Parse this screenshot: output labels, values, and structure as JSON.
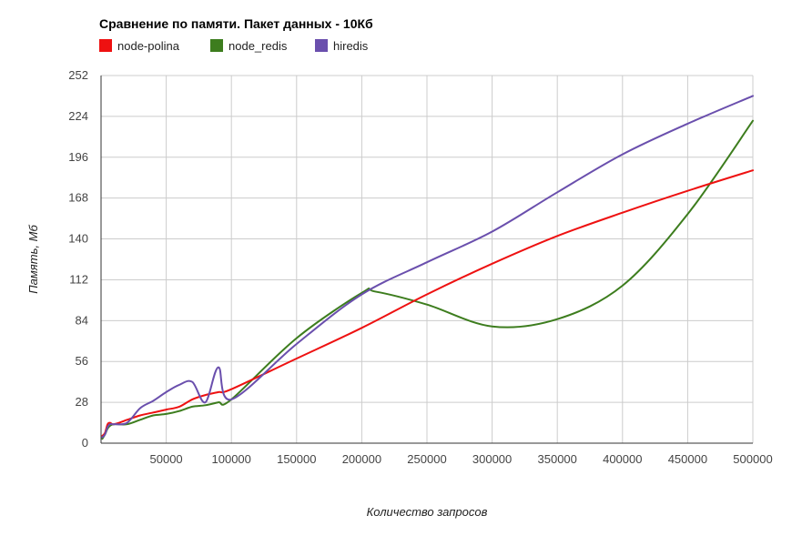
{
  "chart_data": {
    "type": "line",
    "title": "Сравнение по памяти. Пакет данных - 10Кб",
    "xlabel": "Количество запросов",
    "ylabel": "Память, Мб",
    "xlim": [
      0,
      500000
    ],
    "ylim": [
      0,
      252
    ],
    "xticks": [
      {
        "value": 50000,
        "label": "50000"
      },
      {
        "value": 100000,
        "label": "100000"
      },
      {
        "value": 150000,
        "label": "150000"
      },
      {
        "value": 200000,
        "label": "200000"
      },
      {
        "value": 250000,
        "label": "250000"
      },
      {
        "value": 300000,
        "label": "300000"
      },
      {
        "value": 350000,
        "label": "350000"
      },
      {
        "value": 400000,
        "label": "400000"
      },
      {
        "value": 450000,
        "label": "450000"
      },
      {
        "value": 500000,
        "label": "500000"
      }
    ],
    "yticks": [
      {
        "value": 0,
        "label": "0"
      },
      {
        "value": 28,
        "label": "28"
      },
      {
        "value": 56,
        "label": "56"
      },
      {
        "value": 84,
        "label": "84"
      },
      {
        "value": 112,
        "label": "112"
      },
      {
        "value": 140,
        "label": "140"
      },
      {
        "value": 168,
        "label": "168"
      },
      {
        "value": 196,
        "label": "196"
      },
      {
        "value": 224,
        "label": "224"
      },
      {
        "value": 252,
        "label": "252"
      }
    ],
    "legend_position": "top-left",
    "series": [
      {
        "name": "node-polina",
        "color": "#ee1111",
        "x": [
          1000,
          3000,
          5000,
          7000,
          10000,
          20000,
          30000,
          40000,
          50000,
          60000,
          70000,
          80000,
          90000,
          100000,
          150000,
          200000,
          250000,
          300000,
          350000,
          400000,
          450000,
          500000
        ],
        "y": [
          5,
          7,
          13,
          14,
          13,
          16,
          19,
          21,
          23,
          25,
          30,
          33,
          35,
          37,
          58,
          79,
          102,
          123,
          142,
          158,
          173,
          187
        ]
      },
      {
        "name": "node_redis",
        "color": "#3d7d1e",
        "x": [
          1000,
          3000,
          5000,
          7000,
          10000,
          20000,
          30000,
          40000,
          50000,
          60000,
          70000,
          80000,
          90000,
          100000,
          150000,
          200000,
          210000,
          250000,
          300000,
          350000,
          400000,
          450000,
          500000
        ],
        "y": [
          3,
          6,
          10,
          12,
          13,
          13,
          16,
          19,
          20,
          22,
          25,
          26,
          28,
          30,
          72,
          103,
          104,
          95,
          80,
          85,
          108,
          157,
          221
        ]
      },
      {
        "name": "hiredis",
        "color": "#6a4fad",
        "x": [
          1000,
          3000,
          5000,
          7000,
          10000,
          20000,
          30000,
          40000,
          50000,
          60000,
          70000,
          80000,
          90000,
          100000,
          150000,
          200000,
          250000,
          300000,
          350000,
          400000,
          450000,
          500000
        ],
        "y": [
          4,
          6,
          11,
          13,
          13,
          14,
          24,
          29,
          35,
          40,
          42,
          28,
          52,
          30,
          68,
          102,
          124,
          145,
          172,
          198,
          219,
          238
        ]
      }
    ]
  }
}
